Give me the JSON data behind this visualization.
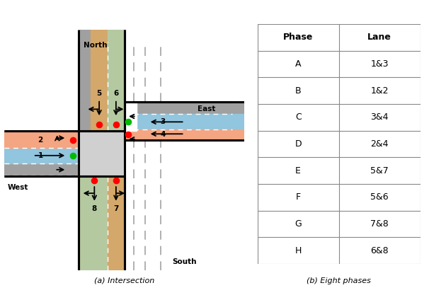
{
  "fig_width": 6.06,
  "fig_height": 4.24,
  "dpi": 100,
  "intersection": {
    "orange_lane_color": "#d4a76a",
    "green_lane_color": "#b5c9a1",
    "blue_lane_color": "#92c5de",
    "salmon_lane_color": "#f4a582",
    "dark_gray_color": "#a0a0a0",
    "light_gray_color": "#d0d0d0",
    "border_color": "#000000",
    "white": "#ffffff"
  },
  "table": {
    "phases": [
      "A",
      "B",
      "C",
      "D",
      "E",
      "F",
      "G",
      "H"
    ],
    "lanes": [
      "1&3",
      "1&2",
      "3&4",
      "2&4",
      "5&7",
      "5&6",
      "7&8",
      "6&8"
    ],
    "border_color": "#888888"
  },
  "caption_intersection": "(a) Intersection",
  "caption_phases": "(b) Eight phases",
  "red_dot_color": "#ff0000",
  "green_dot_color": "#00bb00",
  "north_label": "North",
  "east_label": "East",
  "west_label": "West",
  "south_label": "South"
}
